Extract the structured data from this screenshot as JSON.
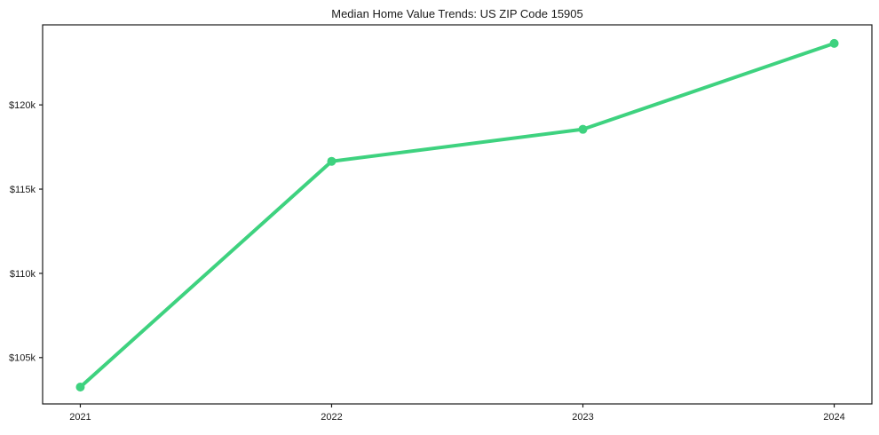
{
  "chart_data": {
    "type": "line",
    "title": "Median Home Value Trends: US ZIP Code 15905",
    "xlabel": "",
    "ylabel": "",
    "x": [
      2021,
      2022,
      2023,
      2024
    ],
    "series": [
      {
        "name": "Median Home Value",
        "values": [
          103250,
          116650,
          118550,
          123650
        ]
      }
    ],
    "xticks": {
      "values": [
        2021,
        2022,
        2023,
        2024
      ],
      "labels": [
        "2021",
        "2022",
        "2023",
        "2024"
      ]
    },
    "yticks": {
      "values": [
        105000,
        110000,
        115000,
        120000
      ],
      "labels": [
        "$105k",
        "$110k",
        "$115k",
        "$120k"
      ]
    },
    "xlim": [
      2020.85,
      2024.15
    ],
    "ylim": [
      102250,
      124750
    ],
    "grid": false,
    "legend": "none",
    "colors": {
      "line": "#3ed27f",
      "marker": "#3ed27f",
      "axis": "#1a1a1a",
      "text": "#1a1a1a",
      "background": "#ffffff"
    }
  }
}
